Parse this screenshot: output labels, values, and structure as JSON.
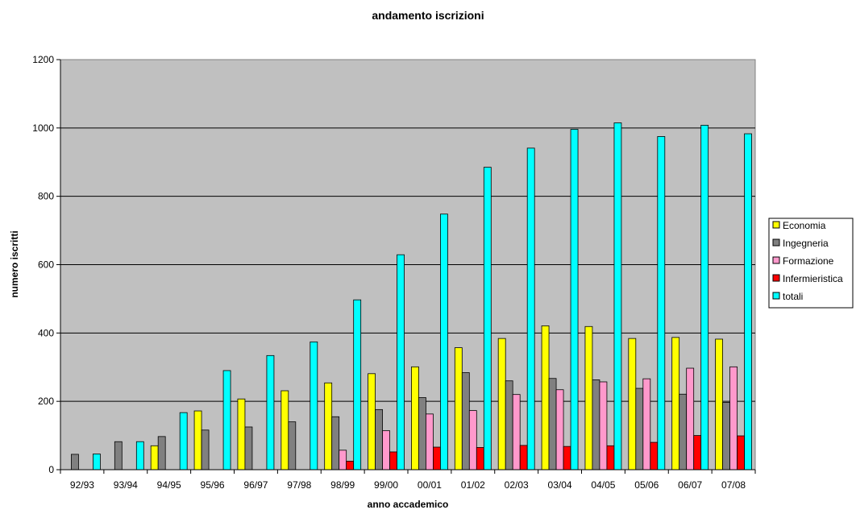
{
  "chart_data": {
    "type": "bar",
    "title": "andamento iscrizioni",
    "xlabel": "anno accademico",
    "ylabel": "numero iscritti",
    "ylim": [
      0,
      1200
    ],
    "yticks": [
      "0",
      "200",
      "400",
      "600",
      "800",
      "1000",
      "1200"
    ],
    "grid": true,
    "legend_position": "right",
    "plot_background": "#c0c0c0",
    "categories": [
      "92/93",
      "93/94",
      "94/95",
      "95/96",
      "96/97",
      "97/98",
      "98/99",
      "99/00",
      "00/01",
      "01/02",
      "02/03",
      "03/04",
      "04/05",
      "05/06",
      "06/07",
      "07/08"
    ],
    "series": [
      {
        "name": "Economia",
        "color": "#ffff00",
        "values": [
          0,
          0,
          70,
          172,
          207,
          231,
          254,
          281,
          301,
          357,
          384,
          421,
          419,
          384,
          387,
          382
        ]
      },
      {
        "name": "Ingegneria",
        "color": "#808080",
        "values": [
          45,
          82,
          97,
          116,
          125,
          140,
          155,
          176,
          211,
          284,
          260,
          267,
          263,
          238,
          221,
          197
        ]
      },
      {
        "name": "Formazione",
        "color": "#ff99cc",
        "values": [
          0,
          0,
          0,
          0,
          0,
          0,
          57,
          114,
          163,
          173,
          220,
          234,
          257,
          266,
          297,
          301
        ]
      },
      {
        "name": "Infermieristica",
        "color": "#ff0000",
        "values": [
          0,
          0,
          0,
          0,
          0,
          0,
          25,
          52,
          66,
          65,
          71,
          68,
          70,
          80,
          100,
          99
        ]
      },
      {
        "name": "totali",
        "color": "#00ffff",
        "values": [
          46,
          82,
          167,
          290,
          334,
          374,
          497,
          629,
          748,
          885,
          941,
          996,
          1015,
          975,
          1008,
          983
        ]
      }
    ]
  }
}
